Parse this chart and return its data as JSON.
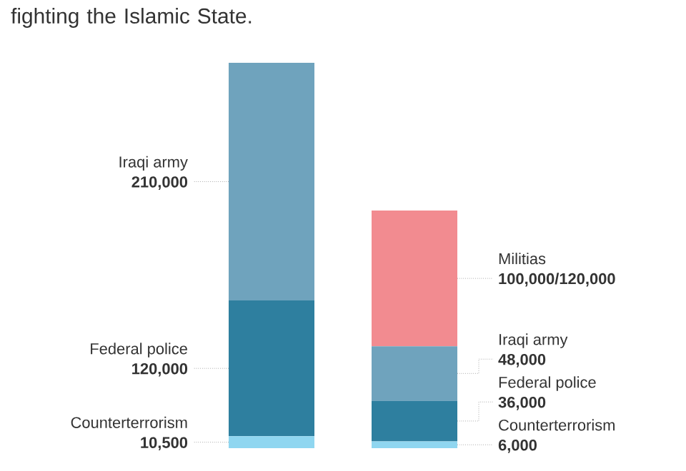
{
  "chart_data": {
    "type": "bar",
    "stacked": true,
    "title": "fighting the Islamic State.",
    "categories": [
      null,
      null
    ],
    "series": [
      {
        "name": "Counterterrorism",
        "color": "#8fd6f0",
        "values": [
          10500,
          6000
        ],
        "value_labels": [
          "10,500",
          "6,000"
        ]
      },
      {
        "name": "Federal police",
        "color": "#2e7f9f",
        "values": [
          120000,
          36000
        ],
        "value_labels": [
          "120,000",
          "36,000"
        ]
      },
      {
        "name": "Iraqi army",
        "color": "#6fa3bd",
        "values": [
          210000,
          48000
        ],
        "value_labels": [
          "210,000",
          "48,000"
        ]
      },
      {
        "name": "Militias",
        "color": "#f28b90",
        "values": [
          null,
          120000
        ],
        "value_labels": [
          null,
          "100,000/120,000"
        ]
      }
    ]
  }
}
